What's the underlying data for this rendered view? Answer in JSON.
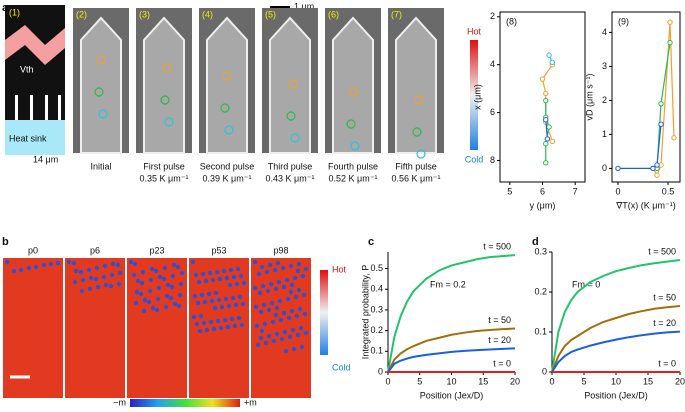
{
  "figure": {
    "panel_a": "a",
    "panel_b": "b",
    "scale_bar": "1 μm",
    "schematic": {
      "label": "(1)",
      "velocity": "Vth",
      "heat_sink": "Heat sink",
      "length": "14 μm"
    },
    "frames": [
      {
        "label": "(2)",
        "caption": "Initial"
      },
      {
        "label": "(3)",
        "caption": "First pulse",
        "gradient": "0.35 K μm⁻¹"
      },
      {
        "label": "(4)",
        "caption": "Second pulse",
        "gradient": "0.39 K μm⁻¹"
      },
      {
        "label": "(5)",
        "caption": "Third pulse",
        "gradient": "0.43 K μm⁻¹"
      },
      {
        "label": "(6)",
        "caption": "Fourth pulse",
        "gradient": "0.52 K μm⁻¹"
      },
      {
        "label": "(7)",
        "caption": "Fifth pulse",
        "gradient": "0.56 K μm⁻¹"
      }
    ],
    "colorbar_a": {
      "hot": "Hot",
      "cold": "Cold"
    },
    "snapshots": [
      "p0",
      "p6",
      "p23",
      "p53",
      "p98"
    ],
    "colorbar_b": {
      "hot": "Hot",
      "cold": "Cold"
    },
    "magnetization": {
      "min": "−m",
      "max": "+m"
    }
  },
  "chart_data": [
    {
      "type": "line",
      "panel": "(8)",
      "x_label": "y (μm)",
      "y_label": "x (μm)",
      "xlim": [
        4.7,
        7.3
      ],
      "xticks": [
        5,
        6,
        7
      ],
      "ylim": [
        1.8,
        8.9
      ],
      "yticks": [
        2,
        4,
        6,
        8
      ],
      "y_inverted": true,
      "markers": true,
      "series": [
        {
          "color": "#f0a030",
          "x": [
            6.3,
            6.0,
            6.1,
            6.1,
            6.3
          ],
          "values": [
            4.0,
            4.6,
            5.2,
            6.4,
            7.2
          ]
        },
        {
          "color": "#2db84a",
          "x": [
            6.1,
            6.1,
            6.2,
            6.1,
            6.1
          ],
          "values": [
            5.5,
            6.2,
            6.6,
            7.3,
            8.1
          ]
        },
        {
          "color": "#1a5fe0",
          "x": [
            6.1,
            6.15
          ],
          "values": [
            6.3,
            7.1
          ]
        },
        {
          "color": "#30c0e0",
          "x": [
            6.2,
            6.3
          ],
          "values": [
            3.6,
            3.9
          ]
        }
      ]
    },
    {
      "type": "line",
      "panel": "(9)",
      "x_label": "∇T(x) (K μm⁻¹)",
      "y_label": "vD (μm s⁻¹)",
      "xlim": [
        -0.06,
        0.62
      ],
      "xticks": [
        0,
        0.5
      ],
      "ylim": [
        -0.4,
        4.6
      ],
      "yticks": [
        0,
        1,
        2,
        3,
        4
      ],
      "markers": true,
      "series": [
        {
          "color": "#f0a030",
          "x": [
            0.35,
            0.39,
            0.43,
            0.52,
            0.56
          ],
          "values": [
            0,
            -0.2,
            0.1,
            4.3,
            0.9
          ]
        },
        {
          "color": "#2db84a",
          "x": [
            0.35,
            0.39,
            0.43,
            0.52
          ],
          "values": [
            0,
            0,
            1.9,
            3.7
          ]
        },
        {
          "color": "#1a5fe0",
          "x": [
            0,
            0.35,
            0.39,
            0.43
          ],
          "values": [
            0,
            0,
            0.1,
            1.3
          ]
        }
      ]
    },
    {
      "type": "line",
      "panel": "c",
      "x_label": "Position (Jex/D)",
      "y_label": "Integrated probability, P",
      "annotation": "Fm = 0.2",
      "xlim": [
        0,
        20
      ],
      "xticks": [
        0,
        5,
        10,
        15,
        20
      ],
      "ylim": [
        0,
        0.58
      ],
      "yticks": [
        0,
        0.1,
        0.2,
        0.3,
        0.4,
        0.5
      ],
      "x": [
        0,
        1,
        2,
        3,
        4,
        6,
        8,
        10,
        12,
        14,
        16,
        18,
        20
      ],
      "series": [
        {
          "name": "t = 500",
          "color": "#22c46a",
          "values": [
            0,
            0.17,
            0.27,
            0.34,
            0.39,
            0.45,
            0.49,
            0.515,
            0.53,
            0.545,
            0.555,
            0.56,
            0.565
          ]
        },
        {
          "name": "t = 50",
          "color": "#a0700a",
          "values": [
            0,
            0.06,
            0.09,
            0.11,
            0.125,
            0.15,
            0.165,
            0.18,
            0.19,
            0.198,
            0.203,
            0.207,
            0.21
          ]
        },
        {
          "name": "t = 20",
          "color": "#1a5fe0",
          "values": [
            0,
            0.04,
            0.055,
            0.065,
            0.073,
            0.083,
            0.09,
            0.097,
            0.102,
            0.106,
            0.109,
            0.112,
            0.114
          ]
        },
        {
          "name": "t = 0",
          "color": "#e02020",
          "values": [
            0,
            0,
            0,
            0,
            0,
            0,
            0,
            0,
            0,
            0,
            0,
            0,
            0
          ]
        }
      ]
    },
    {
      "type": "line",
      "panel": "d",
      "x_label": "Position (Jex/D)",
      "annotation": "Fm = 0",
      "xlim": [
        0,
        20
      ],
      "xticks": [
        0,
        5,
        10,
        15,
        20
      ],
      "ylim": [
        0,
        0.3
      ],
      "yticks": [
        0,
        0.1,
        0.2,
        0.3
      ],
      "x": [
        0,
        1,
        2,
        3,
        4,
        6,
        8,
        10,
        12,
        14,
        16,
        18,
        20
      ],
      "series": [
        {
          "name": "t = 500",
          "color": "#22c46a",
          "values": [
            0,
            0.1,
            0.15,
            0.18,
            0.2,
            0.225,
            0.24,
            0.252,
            0.26,
            0.267,
            0.272,
            0.276,
            0.28
          ]
        },
        {
          "name": "t = 50",
          "color": "#a0700a",
          "values": [
            0,
            0.04,
            0.065,
            0.08,
            0.09,
            0.11,
            0.125,
            0.135,
            0.145,
            0.152,
            0.158,
            0.162,
            0.165
          ]
        },
        {
          "name": "t = 20",
          "color": "#1a5fe0",
          "values": [
            0,
            0.025,
            0.04,
            0.05,
            0.056,
            0.066,
            0.074,
            0.081,
            0.087,
            0.092,
            0.096,
            0.099,
            0.101
          ]
        },
        {
          "name": "t = 0",
          "color": "#e02020",
          "values": [
            0,
            0,
            0,
            0,
            0,
            0,
            0,
            0,
            0,
            0,
            0,
            0,
            0
          ]
        }
      ]
    }
  ]
}
